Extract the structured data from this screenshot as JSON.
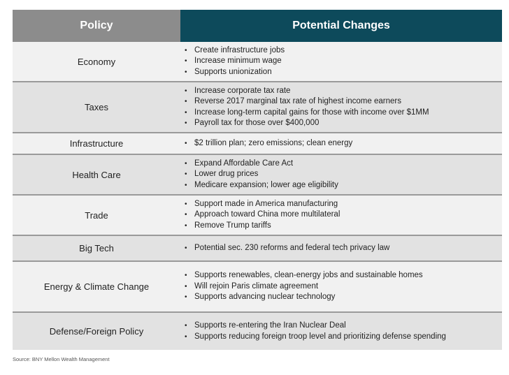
{
  "header": {
    "policy": "Policy",
    "changes": "Potential Changes"
  },
  "rows": [
    {
      "policy": "Economy",
      "changes": [
        "Create infrastructure jobs",
        "Increase minimum wage",
        "Supports unionization"
      ]
    },
    {
      "policy": "Taxes",
      "changes": [
        "Increase corporate tax rate",
        "Reverse 2017 marginal tax rate of highest income earners",
        "Increase long-term capital gains for those with income over $1MM",
        "Payroll tax for those over $400,000"
      ]
    },
    {
      "policy": "Infrastructure",
      "changes": [
        "$2 trillion plan; zero emissions; clean energy"
      ]
    },
    {
      "policy": "Health Care",
      "changes": [
        "Expand Affordable Care Act",
        "Lower drug prices",
        "Medicare expansion; lower age eligibility"
      ]
    },
    {
      "policy": "Trade",
      "changes": [
        "Support made in America manufacturing",
        "Approach toward China more multilateral",
        "Remove Trump tariffs"
      ]
    },
    {
      "policy": "Big Tech",
      "changes": [
        "Potential sec. 230 reforms and federal tech privacy law"
      ]
    },
    {
      "policy": "Energy & Climate Change",
      "changes": [
        "Supports renewables, clean-energy jobs and sustainable homes",
        "Will rejoin Paris climate agreement",
        "Supports advancing nuclear technology"
      ]
    },
    {
      "policy": "Defense/Foreign Policy",
      "changes": [
        "Supports re-entering the Iran Nuclear Deal",
        "Supports reducing foreign troop level and prioritizing defense spending"
      ]
    }
  ],
  "source": "Source: BNY Mellon Wealth Management"
}
